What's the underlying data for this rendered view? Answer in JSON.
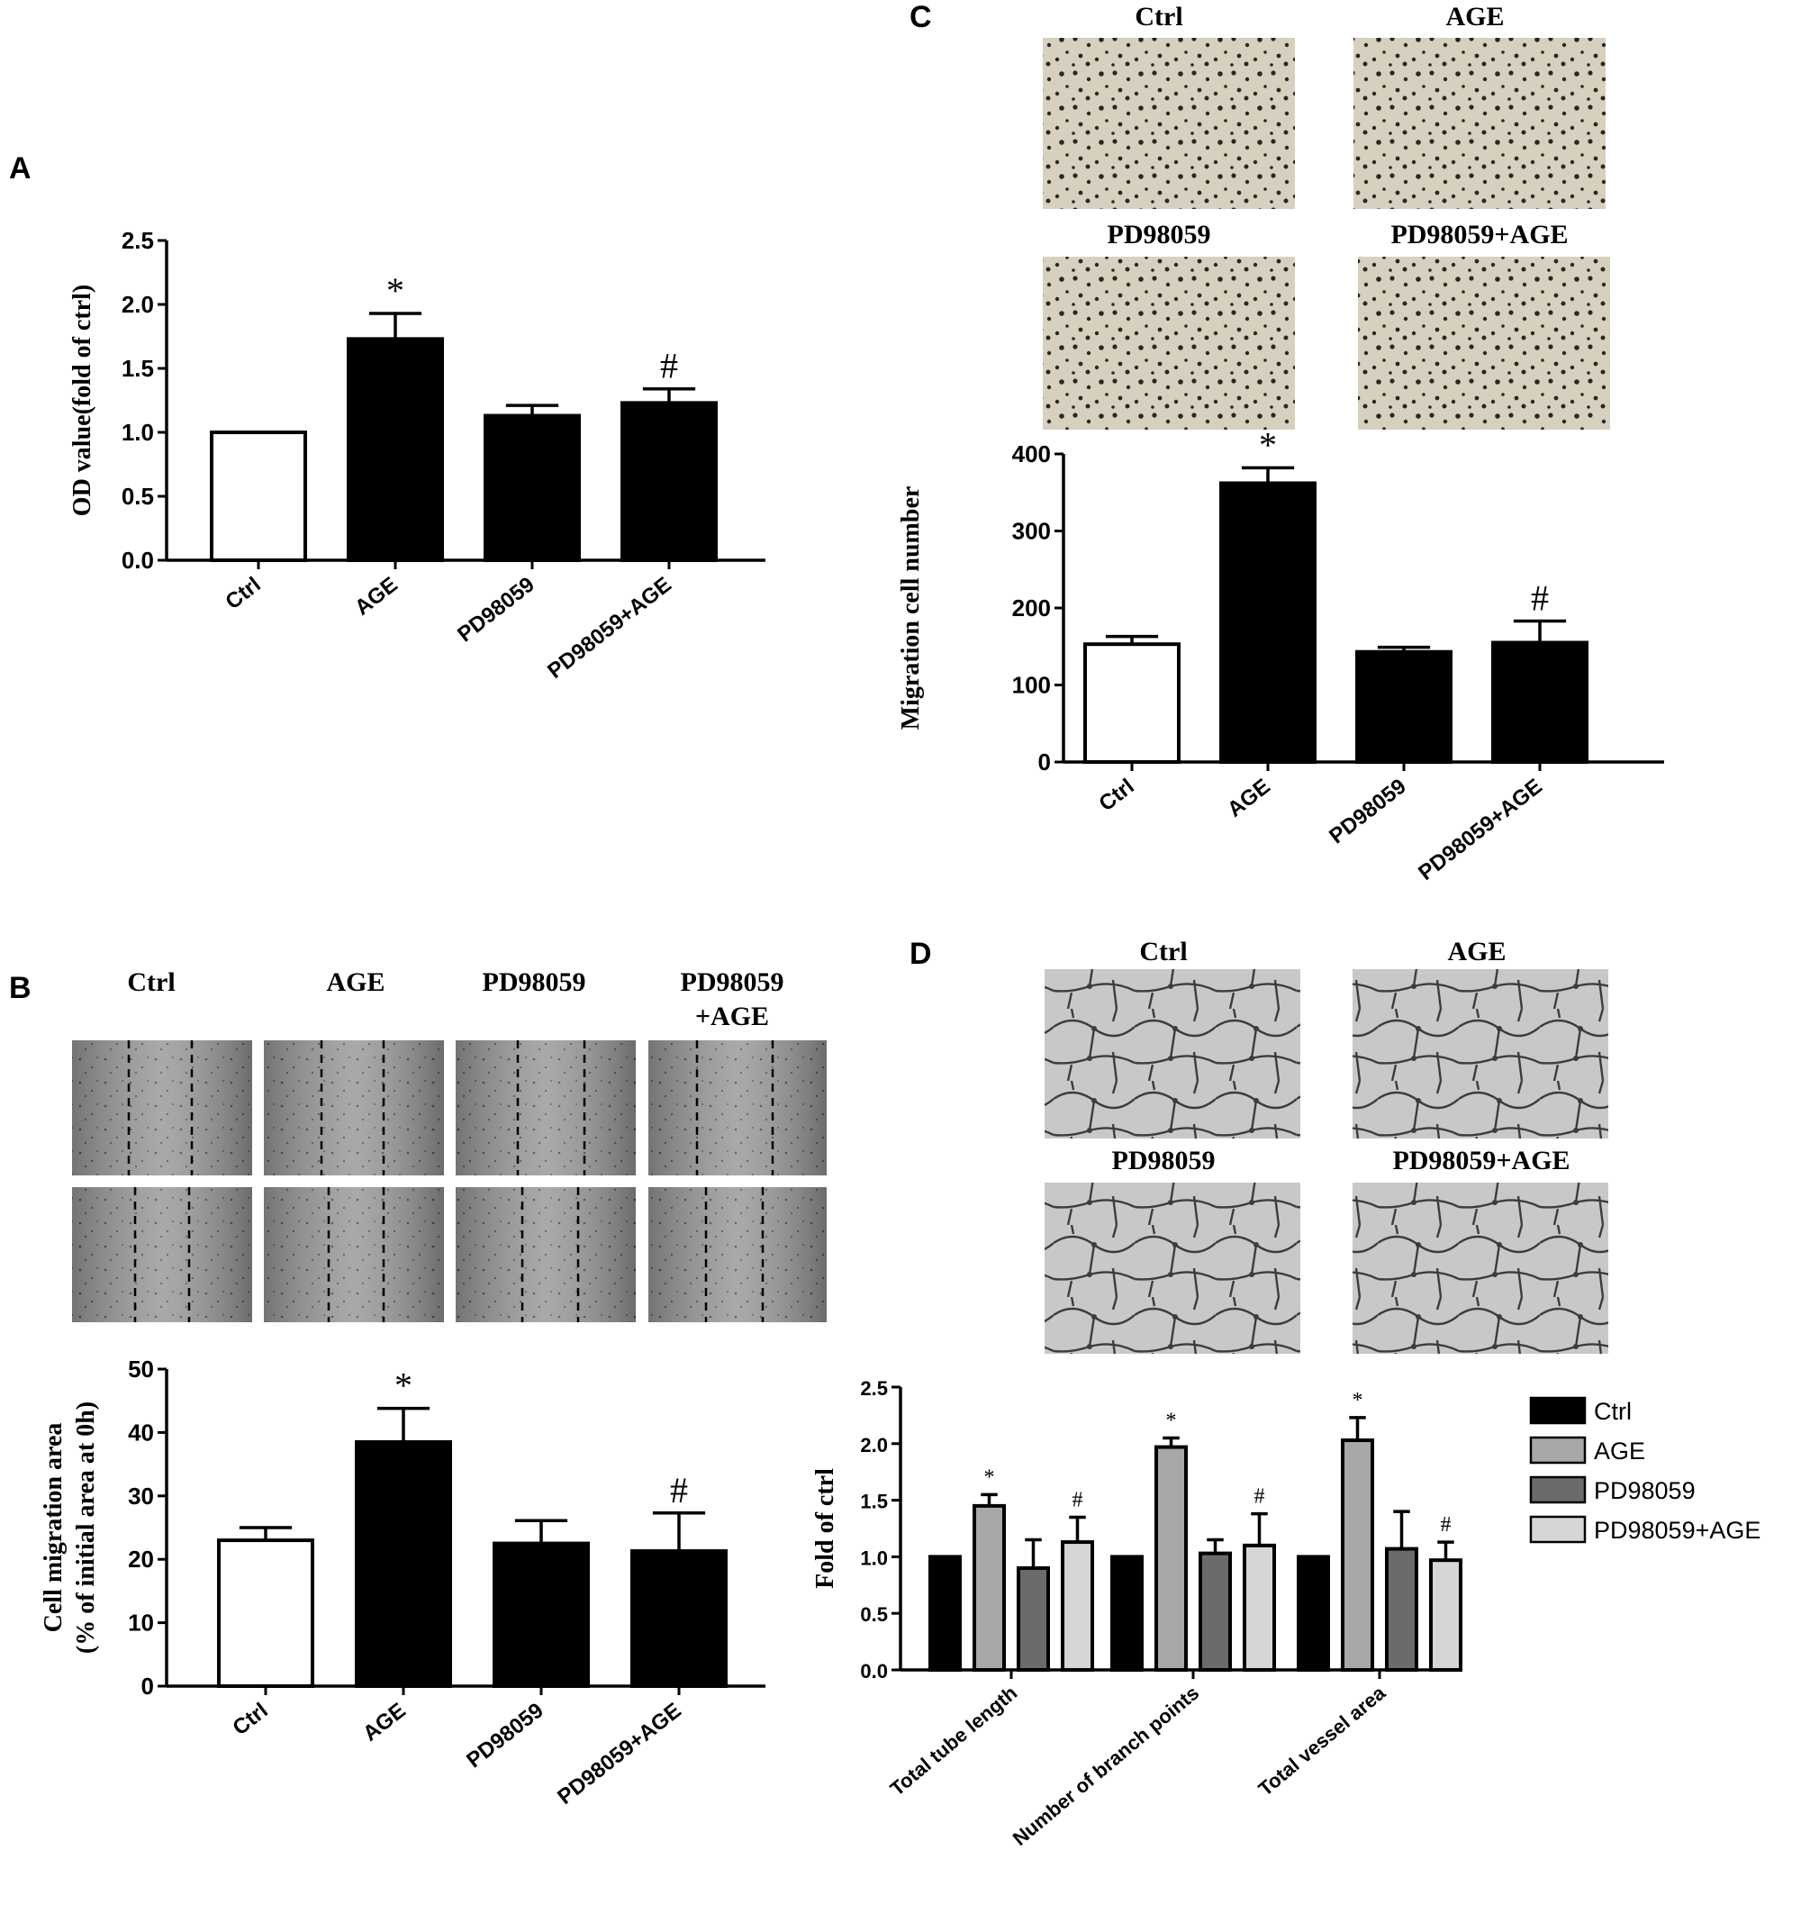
{
  "panel_letters": {
    "a": "A",
    "b": "B",
    "c": "C",
    "d": "D"
  },
  "photo_labels": {
    "c": [
      "Ctrl",
      "AGE",
      "PD98059",
      "PD98059+AGE"
    ],
    "b": [
      "Ctrl",
      "AGE",
      "PD98059",
      "PD98059",
      "+AGE"
    ],
    "d": [
      "Ctrl",
      "AGE",
      "PD98059",
      "PD98059+AGE"
    ]
  },
  "colors": {
    "bar_fill": "#000000",
    "ctrl_fill": "#ffffff",
    "stroke": "#000000",
    "transwell_bg": "#d8d0bf",
    "transwell_cells": "#2a2622",
    "scratch_bg": "#9a9a9a",
    "tube_bg": "#c8c8c8",
    "tube_line": "#3c3c3c",
    "d_series": [
      "#000000",
      "#a8a8a8",
      "#6b6b6b",
      "#d6d6d6"
    ]
  },
  "chart_data": [
    {
      "id": "A",
      "type": "bar",
      "categories": [
        "Ctrl",
        "AGE",
        "PD98059",
        "PD98059+AGE"
      ],
      "values": [
        1.0,
        1.73,
        1.13,
        1.23
      ],
      "errors": [
        0,
        0.2,
        0.08,
        0.11
      ],
      "annotations": [
        "",
        "*",
        "",
        "#"
      ],
      "ylabel": "OD value(fold of ctrl)",
      "ylim": [
        0,
        2.5
      ],
      "yticks": [
        "0.0",
        "0.5",
        "1.0",
        "1.5",
        "2.0",
        "2.5"
      ]
    },
    {
      "id": "C",
      "type": "bar",
      "categories": [
        "Ctrl",
        "AGE",
        "PD98059",
        "PD98059+AGE"
      ],
      "values": [
        153,
        362,
        143,
        155
      ],
      "errors": [
        10,
        20,
        6,
        28
      ],
      "annotations": [
        "",
        "*",
        "",
        "#"
      ],
      "ylabel": "Migration cell number",
      "ylim": [
        0,
        400
      ],
      "yticks": [
        "0",
        "100",
        "200",
        "300",
        "400"
      ]
    },
    {
      "id": "B",
      "type": "bar",
      "categories": [
        "Ctrl",
        "AGE",
        "PD98059",
        "PD98059+AGE"
      ],
      "values": [
        23,
        38.5,
        22.5,
        21.3
      ],
      "errors": [
        2,
        5.3,
        3.6,
        6
      ],
      "annotations": [
        "",
        "*",
        "",
        "#"
      ],
      "ylabel": "Cell migration area",
      "ylabel2": "(% of initial area at 0h)",
      "ylim": [
        0,
        50
      ],
      "yticks": [
        "0",
        "10",
        "20",
        "30",
        "40",
        "50"
      ]
    },
    {
      "id": "D",
      "type": "bar",
      "categories": [
        "Total tube length",
        "Number of branch points",
        "Total vessel area"
      ],
      "series": [
        {
          "name": "Ctrl",
          "values": [
            1.0,
            1.0,
            1.0
          ],
          "errors": [
            0,
            0,
            0
          ],
          "annotations": [
            "",
            "",
            ""
          ]
        },
        {
          "name": "AGE",
          "values": [
            1.45,
            1.97,
            2.03
          ],
          "errors": [
            0.1,
            0.08,
            0.2
          ],
          "annotations": [
            "*",
            "*",
            "*"
          ]
        },
        {
          "name": "PD98059",
          "values": [
            0.9,
            1.03,
            1.07
          ],
          "errors": [
            0.25,
            0.12,
            0.33
          ],
          "annotations": [
            "",
            "",
            ""
          ]
        },
        {
          "name": "PD98059+AGE",
          "values": [
            1.13,
            1.1,
            0.97
          ],
          "errors": [
            0.22,
            0.28,
            0.16
          ],
          "annotations": [
            "#",
            "#",
            "#"
          ]
        }
      ],
      "ylabel": "Fold of ctrl",
      "ylim": [
        0,
        2.5
      ],
      "yticks": [
        "0.0",
        "0.5",
        "1.0",
        "1.5",
        "2.0",
        "2.5"
      ],
      "legend": "right"
    }
  ]
}
